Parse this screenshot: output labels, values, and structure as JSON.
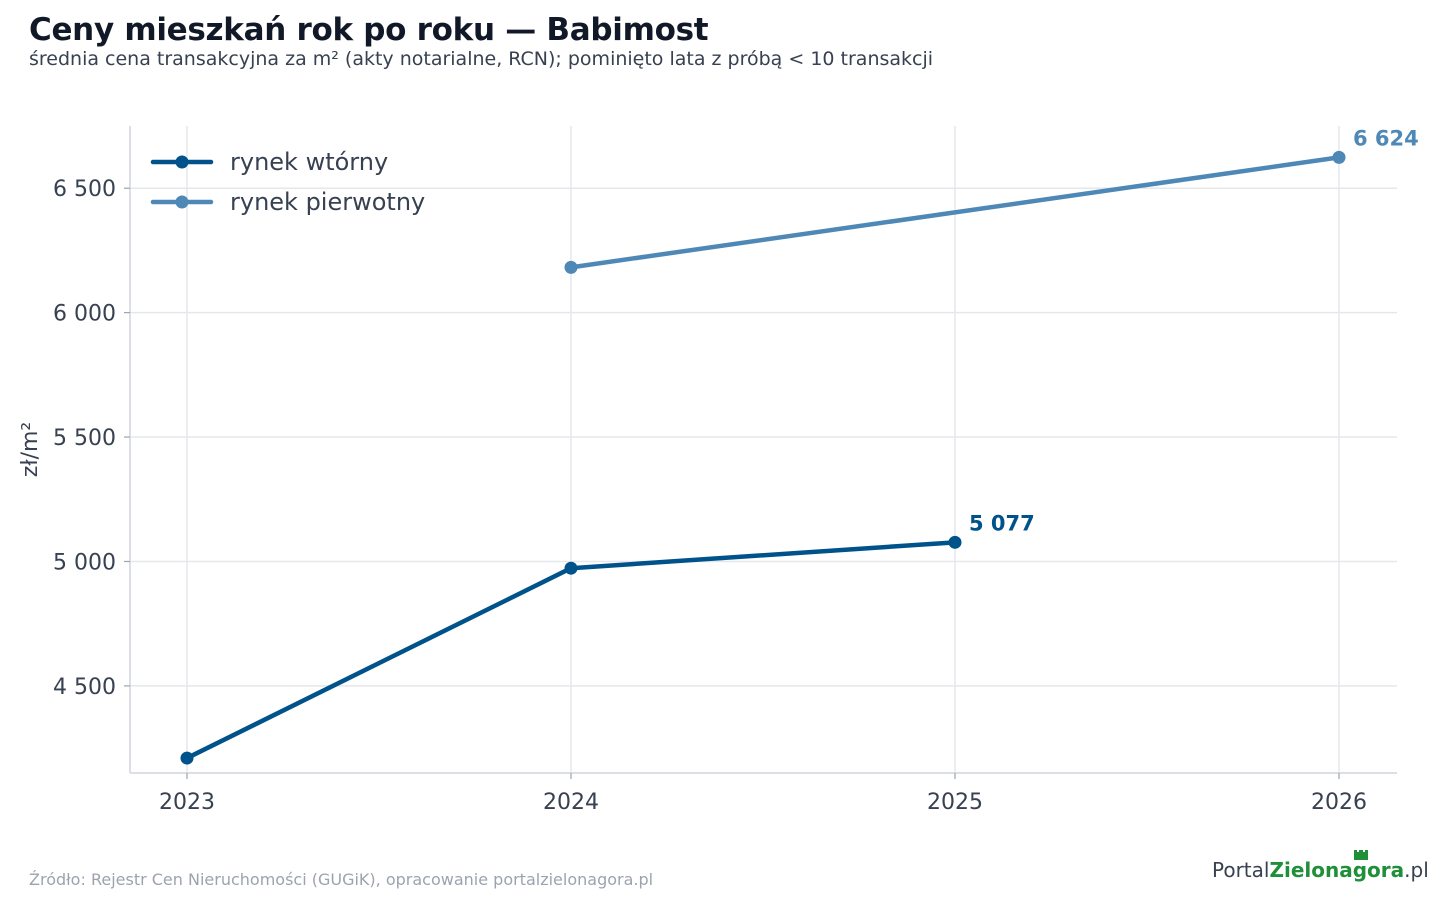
{
  "header": {
    "title": "Ceny mieszkań rok po roku — Babimost",
    "subtitle": "średnia cena transakcyjna za m² (akty notarialne, RCN); pominięto lata z próbą < 10 transakcji"
  },
  "footer": {
    "source": "Źródło: Rejestr Cen Nieruchomości (GUGiK), opracowanie portalzielonagora.pl",
    "logo_part1": "Portal",
    "logo_part2": "Zielonagora",
    "logo_part3": ".pl"
  },
  "chart_data": {
    "type": "line",
    "title": "Ceny mieszkań rok po roku — Babimost",
    "subtitle": "średnia cena transakcyjna za m² (akty notarialne, RCN); pominięto lata z próbą < 10 transakcji",
    "xlabel": "",
    "ylabel": "zł/m²",
    "x": [
      2023,
      2024,
      2025,
      2026
    ],
    "x_tick_labels": [
      "2023",
      "2024",
      "2025",
      "2026"
    ],
    "ylim": [
      4150,
      6750
    ],
    "y_ticks": [
      4500,
      5000,
      5500,
      6000,
      6500
    ],
    "y_tick_labels": [
      "4 500",
      "5 000",
      "5 500",
      "6 000",
      "6 500"
    ],
    "grid": true,
    "legend_position": "top-left",
    "series": [
      {
        "name": "rynek wtórny",
        "color": "#00538a",
        "points": [
          {
            "x": 2023,
            "y": 4210
          },
          {
            "x": 2024,
            "y": 4973
          },
          {
            "x": 2025,
            "y": 5077
          }
        ],
        "end_label": "5 077"
      },
      {
        "name": "rynek pierwotny",
        "color": "#4d88b7",
        "points": [
          {
            "x": 2024,
            "y": 6182
          },
          {
            "x": 2026,
            "y": 6624
          }
        ],
        "end_label": "6 624"
      }
    ]
  }
}
